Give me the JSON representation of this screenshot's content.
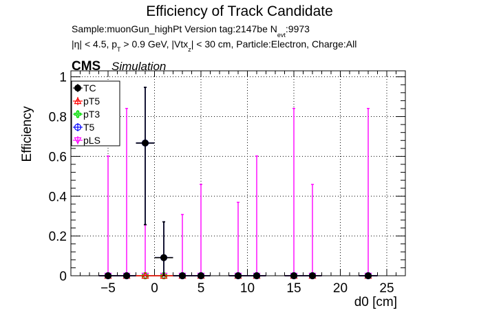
{
  "header": {
    "title": "Efficiency of Track Candidate",
    "sample_line_parts": {
      "main": "Sample:muonGun_highPt   Version tag:2147be  N",
      "sub": "evt",
      "tail": ":9973"
    },
    "cuts_line_parts": {
      "p1": "|η| < 4.5, p",
      "s1": "T",
      "p2": " > 0.9 GeV, |Vtx",
      "s2": "z",
      "p3": "| < 30 cm, Particle:Electron, Charge:All"
    },
    "cms_label": "CMS",
    "simulation_label": "Simulation"
  },
  "chart_data": {
    "type": "scatter",
    "title": "Efficiency of Track Candidate",
    "xlabel": "d0 [cm]",
    "ylabel": "Efficiency",
    "xlim": [
      -9,
      27
    ],
    "ylim": [
      0,
      1.03
    ],
    "grid": true,
    "legend_placement": "top-left",
    "x_ticks": [
      -5,
      0,
      5,
      10,
      15,
      20,
      25
    ],
    "x_tick_labels": [
      "−5",
      "0",
      "5",
      "10",
      "15",
      "20",
      "25"
    ],
    "y_ticks": [
      0,
      0.2,
      0.4,
      0.6,
      0.8,
      1
    ],
    "y_tick_labels": [
      "0",
      "0.2",
      "0.4",
      "0.6",
      "0.8",
      "1"
    ],
    "series": [
      {
        "name": "TC",
        "color": "#000000",
        "marker": "filled-circle",
        "points": [
          {
            "x": -5,
            "xerr": 1,
            "y": 0,
            "yerr_lo": 0,
            "yerr_hi": 0
          },
          {
            "x": -3,
            "xerr": 1,
            "y": 0,
            "yerr_lo": 0,
            "yerr_hi": 0
          },
          {
            "x": -1,
            "xerr": 1,
            "y": 0.667,
            "yerr_lo": 0.41,
            "yerr_hi": 0.28
          },
          {
            "x": 1,
            "xerr": 1,
            "y": 0.091,
            "yerr_lo": 0.09,
            "yerr_hi": 0.18
          },
          {
            "x": 3,
            "xerr": 1,
            "y": 0,
            "yerr_lo": 0,
            "yerr_hi": 0
          },
          {
            "x": 5,
            "xerr": 1,
            "y": 0,
            "yerr_lo": 0,
            "yerr_hi": 0
          },
          {
            "x": 9,
            "xerr": 1,
            "y": 0,
            "yerr_lo": 0,
            "yerr_hi": 0
          },
          {
            "x": 11,
            "xerr": 1,
            "y": 0,
            "yerr_lo": 0,
            "yerr_hi": 0
          },
          {
            "x": 15,
            "xerr": 1,
            "y": 0,
            "yerr_lo": 0,
            "yerr_hi": 0
          },
          {
            "x": 17,
            "xerr": 1,
            "y": 0,
            "yerr_lo": 0,
            "yerr_hi": 0
          },
          {
            "x": 23,
            "xerr": 1,
            "y": 0,
            "yerr_lo": 0,
            "yerr_hi": 0
          }
        ]
      },
      {
        "name": "pT5",
        "color": "#ff0000",
        "marker": "open-triangle",
        "points": [
          {
            "x": -5,
            "xerr": 1,
            "y": 0,
            "yerr_lo": 0,
            "yerr_hi": 0
          },
          {
            "x": -3,
            "xerr": 1,
            "y": 0,
            "yerr_lo": 0,
            "yerr_hi": 0
          },
          {
            "x": -1,
            "xerr": 1,
            "y": 0,
            "yerr_lo": 0,
            "yerr_hi": 0
          },
          {
            "x": 1,
            "xerr": 1,
            "y": 0,
            "yerr_lo": 0,
            "yerr_hi": 0
          },
          {
            "x": 3,
            "xerr": 1,
            "y": 0,
            "yerr_lo": 0,
            "yerr_hi": 0
          },
          {
            "x": 5,
            "xerr": 1,
            "y": 0,
            "yerr_lo": 0,
            "yerr_hi": 0
          },
          {
            "x": 9,
            "xerr": 1,
            "y": 0,
            "yerr_lo": 0,
            "yerr_hi": 0
          },
          {
            "x": 11,
            "xerr": 1,
            "y": 0,
            "yerr_lo": 0,
            "yerr_hi": 0
          },
          {
            "x": 15,
            "xerr": 1,
            "y": 0,
            "yerr_lo": 0,
            "yerr_hi": 0
          },
          {
            "x": 17,
            "xerr": 1,
            "y": 0,
            "yerr_lo": 0,
            "yerr_hi": 0
          },
          {
            "x": 23,
            "xerr": 1,
            "y": 0,
            "yerr_lo": 0,
            "yerr_hi": 0
          }
        ]
      },
      {
        "name": "pT3",
        "color": "#00dd00",
        "marker": "open-cross",
        "points": [
          {
            "x": -5,
            "xerr": 1,
            "y": 0,
            "yerr_lo": 0,
            "yerr_hi": 0
          },
          {
            "x": -3,
            "xerr": 1,
            "y": 0,
            "yerr_lo": 0,
            "yerr_hi": 0
          },
          {
            "x": -1,
            "xerr": 1,
            "y": 0,
            "yerr_lo": 0,
            "yerr_hi": 0
          },
          {
            "x": 1,
            "xerr": 1,
            "y": 0,
            "yerr_lo": 0,
            "yerr_hi": 0
          },
          {
            "x": 3,
            "xerr": 1,
            "y": 0,
            "yerr_lo": 0,
            "yerr_hi": 0
          },
          {
            "x": 5,
            "xerr": 1,
            "y": 0,
            "yerr_lo": 0,
            "yerr_hi": 0
          },
          {
            "x": 9,
            "xerr": 1,
            "y": 0,
            "yerr_lo": 0,
            "yerr_hi": 0
          },
          {
            "x": 11,
            "xerr": 1,
            "y": 0,
            "yerr_lo": 0,
            "yerr_hi": 0
          },
          {
            "x": 15,
            "xerr": 1,
            "y": 0,
            "yerr_lo": 0,
            "yerr_hi": 0
          },
          {
            "x": 17,
            "xerr": 1,
            "y": 0,
            "yerr_lo": 0,
            "yerr_hi": 0
          },
          {
            "x": 23,
            "xerr": 1,
            "y": 0,
            "yerr_lo": 0,
            "yerr_hi": 0
          }
        ]
      },
      {
        "name": "T5",
        "color": "#0000ff",
        "marker": "open-circle",
        "points": [
          {
            "x": -5,
            "xerr": 1,
            "y": 0,
            "yerr_lo": 0,
            "yerr_hi": 0
          },
          {
            "x": -3,
            "xerr": 1,
            "y": 0,
            "yerr_lo": 0,
            "yerr_hi": 0
          },
          {
            "x": -1,
            "xerr": 1,
            "y": 0.667,
            "yerr_lo": 0.41,
            "yerr_hi": 0.28
          },
          {
            "x": 1,
            "xerr": 1,
            "y": 0.091,
            "yerr_lo": 0.09,
            "yerr_hi": 0.18
          },
          {
            "x": 3,
            "xerr": 1,
            "y": 0,
            "yerr_lo": 0,
            "yerr_hi": 0
          },
          {
            "x": 5,
            "xerr": 1,
            "y": 0,
            "yerr_lo": 0,
            "yerr_hi": 0
          },
          {
            "x": 9,
            "xerr": 1,
            "y": 0,
            "yerr_lo": 0,
            "yerr_hi": 0
          },
          {
            "x": 11,
            "xerr": 1,
            "y": 0,
            "yerr_lo": 0,
            "yerr_hi": 0
          },
          {
            "x": 15,
            "xerr": 1,
            "y": 0,
            "yerr_lo": 0,
            "yerr_hi": 0
          },
          {
            "x": 17,
            "xerr": 1,
            "y": 0,
            "yerr_lo": 0,
            "yerr_hi": 0
          },
          {
            "x": 23,
            "xerr": 1,
            "y": 0,
            "yerr_lo": 0,
            "yerr_hi": 0
          }
        ]
      },
      {
        "name": "pLS",
        "color": "#ff00ff",
        "marker": "open-triangle-down",
        "points": [
          {
            "x": -5,
            "xerr": 1,
            "y": 0,
            "yerr_lo": 0,
            "yerr_hi": 0.602
          },
          {
            "x": -3,
            "xerr": 1,
            "y": 0,
            "yerr_lo": 0,
            "yerr_hi": 0.841
          },
          {
            "x": -1,
            "xerr": 1,
            "y": 0,
            "yerr_lo": 0,
            "yerr_hi": 0.255
          },
          {
            "x": 1,
            "xerr": 1,
            "y": 0,
            "yerr_lo": 0,
            "yerr_hi": 0
          },
          {
            "x": 3,
            "xerr": 1,
            "y": 0,
            "yerr_lo": 0,
            "yerr_hi": 0.308
          },
          {
            "x": 5,
            "xerr": 1,
            "y": 0,
            "yerr_lo": 0,
            "yerr_hi": 0.459
          },
          {
            "x": 9,
            "xerr": 1,
            "y": 0,
            "yerr_lo": 0,
            "yerr_hi": 0.369
          },
          {
            "x": 11,
            "xerr": 1,
            "y": 0,
            "yerr_lo": 0,
            "yerr_hi": 0.602
          },
          {
            "x": 15,
            "xerr": 1,
            "y": 0,
            "yerr_lo": 0,
            "yerr_hi": 0.841
          },
          {
            "x": 17,
            "xerr": 1,
            "y": 0,
            "yerr_lo": 0,
            "yerr_hi": 0.459
          },
          {
            "x": 23,
            "xerr": 1,
            "y": 0,
            "yerr_lo": 0,
            "yerr_hi": 0.841
          }
        ]
      }
    ]
  }
}
